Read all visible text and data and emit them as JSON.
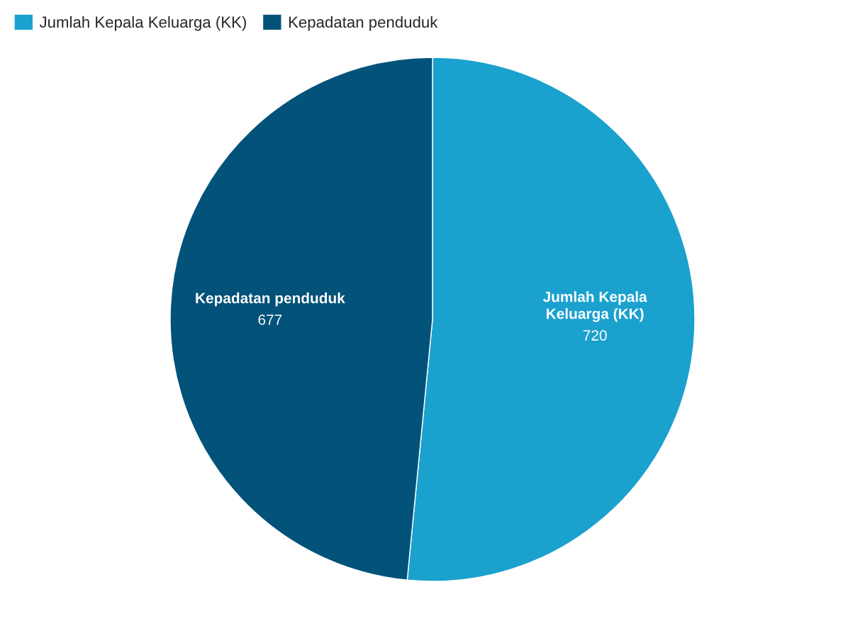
{
  "chart_data": {
    "type": "pie",
    "categories": [
      "Jumlah Kepala Keluarga (KK)",
      "Kepadatan penduduk"
    ],
    "values": [
      720,
      677
    ],
    "colors": [
      "#1aa1ce",
      "#03527a"
    ],
    "data_labels": true,
    "legend": "top left"
  }
}
